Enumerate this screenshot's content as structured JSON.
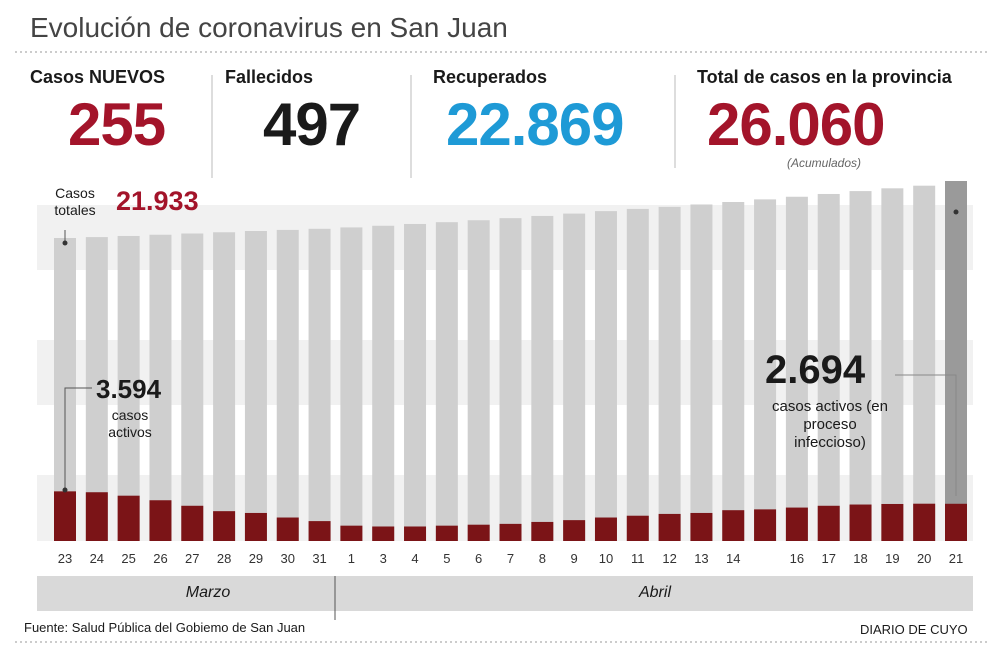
{
  "header": {
    "title": "Evolución de coronavirus en San Juan",
    "stats": [
      {
        "label": "Casos NUEVOS",
        "value": "255",
        "color": "#a3142a"
      },
      {
        "label": "Fallecidos",
        "value": "497",
        "color": "#1a1a1a"
      },
      {
        "label": "Recuperados",
        "value": "22.869",
        "color": "#1e9ad6"
      },
      {
        "label": "Total de casos en la provincia",
        "value": "26.060",
        "color": "#a3142a",
        "note": "(Acumulados)"
      }
    ]
  },
  "chart_data": {
    "type": "bar",
    "categories": [
      "23",
      "24",
      "25",
      "26",
      "27",
      "28",
      "29",
      "30",
      "31",
      "1",
      "3",
      "4",
      "5",
      "6",
      "7",
      "8",
      "9",
      "10",
      "11",
      "12",
      "13",
      "14",
      null,
      "16",
      "17",
      "18",
      "19",
      "20",
      "21"
    ],
    "series": [
      {
        "name": "Casos totales",
        "color": "#cfcfcf",
        "values": [
          21933,
          22000,
          22080,
          22170,
          22260,
          22350,
          22440,
          22520,
          22600,
          22700,
          22820,
          22950,
          23080,
          23220,
          23370,
          23530,
          23700,
          23880,
          24040,
          24190,
          24360,
          24540,
          24730,
          24920,
          25120,
          25330,
          25530,
          25720,
          26060
        ],
        "value_labels": [
          "21.933",
          null,
          null,
          null,
          null,
          null,
          null,
          null,
          null,
          null,
          null,
          null,
          null,
          null,
          null,
          null,
          null,
          null,
          null,
          null,
          null,
          null,
          null,
          null,
          null,
          null,
          null,
          null,
          null
        ]
      },
      {
        "name": "casos activos",
        "color": "#7b1417",
        "values": [
          3594,
          3530,
          3280,
          2950,
          2550,
          2160,
          2030,
          1700,
          1440,
          1110,
          1050,
          1050,
          1110,
          1180,
          1240,
          1380,
          1510,
          1700,
          1830,
          1960,
          2030,
          2230,
          2290,
          2420,
          2550,
          2640,
          2680,
          2700,
          2694
        ],
        "value_labels": [
          "3.594",
          null,
          null,
          null,
          null,
          null,
          null,
          null,
          null,
          null,
          null,
          null,
          null,
          null,
          null,
          null,
          null,
          null,
          null,
          null,
          null,
          null,
          null,
          null,
          null,
          null,
          null,
          null,
          "2.694"
        ]
      }
    ],
    "ylim": [
      0,
      26060
    ],
    "annotation": "casos activos (en proceso infeccioso)",
    "months": [
      "Marzo",
      "Abril"
    ]
  },
  "footer": {
    "source": "Fuente: Salud Pública del Gobiemo de San Juan",
    "brand": "DIARIO DE CUYO"
  }
}
